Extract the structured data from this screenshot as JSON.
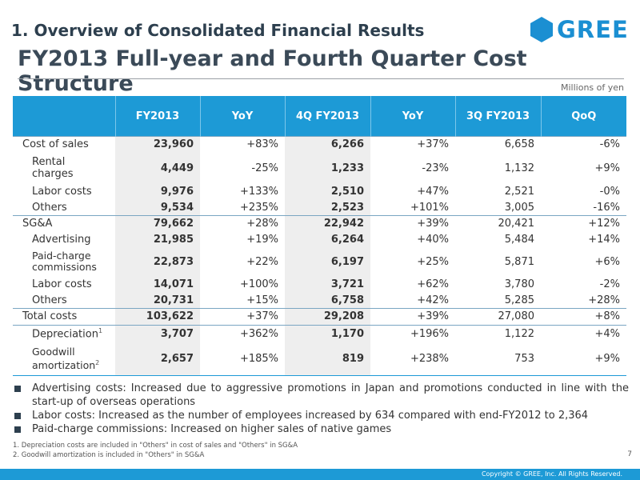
{
  "header": {
    "section_title": "1. Overview of Consolidated Financial Results",
    "logo_text": "GREE",
    "main_title": "FY2013 Full-year and Fourth Quarter Cost Structure",
    "unit": "Millions of yen"
  },
  "table": {
    "columns": [
      "FY2013",
      "YoY",
      "4Q FY2013",
      "YoY",
      "3Q FY2013",
      "QoQ"
    ],
    "rows": [
      {
        "label": "Cost of sales",
        "sup": "",
        "values": [
          "23,960",
          "+83%",
          "6,266",
          "+37%",
          "6,658",
          "-6%"
        ]
      },
      {
        "label": "Rental charges",
        "sup": "",
        "values": [
          "4,449",
          "-25%",
          "1,233",
          "-23%",
          "1,132",
          "+9%"
        ]
      },
      {
        "label": "Labor costs",
        "sup": "",
        "values": [
          "9,976",
          "+133%",
          "2,510",
          "+47%",
          "2,521",
          "-0%"
        ]
      },
      {
        "label": "Others",
        "sup": "",
        "values": [
          "9,534",
          "+235%",
          "2,523",
          "+101%",
          "3,005",
          "-16%"
        ]
      },
      {
        "label": "SG&A",
        "sup": "",
        "values": [
          "79,662",
          "+28%",
          "22,942",
          "+39%",
          "20,421",
          "+12%"
        ]
      },
      {
        "label": "Advertising",
        "sup": "",
        "values": [
          "21,985",
          "+19%",
          "6,264",
          "+40%",
          "5,484",
          "+14%"
        ]
      },
      {
        "label": "Paid-charge commissions",
        "sup": "",
        "values": [
          "22,873",
          "+22%",
          "6,197",
          "+25%",
          "5,871",
          "+6%"
        ]
      },
      {
        "label": "Labor costs",
        "sup": "",
        "values": [
          "14,071",
          "+100%",
          "3,721",
          "+62%",
          "3,780",
          "-2%"
        ]
      },
      {
        "label": "Others",
        "sup": "",
        "values": [
          "20,731",
          "+15%",
          "6,758",
          "+42%",
          "5,285",
          "+28%"
        ]
      },
      {
        "label": "Total costs",
        "sup": "",
        "values": [
          "103,622",
          "+37%",
          "29,208",
          "+39%",
          "27,080",
          "+8%"
        ]
      },
      {
        "label": "Depreciation",
        "sup": "1",
        "values": [
          "3,707",
          "+362%",
          "1,170",
          "+196%",
          "1,122",
          "+4%"
        ]
      },
      {
        "label": "Goodwill amortization",
        "sup": "2",
        "values": [
          "2,657",
          "+185%",
          "819",
          "+238%",
          "753",
          "+9%"
        ]
      }
    ]
  },
  "bullets": [
    "Advertising costs: Increased due to aggressive promotions in Japan and promotions conducted in line with the start-up of overseas operations",
    "Labor costs: Increased as the number of employees increased by 634 compared with end-FY2012 to 2,364",
    "Paid-charge commissions: Increased on higher sales of native games"
  ],
  "footnotes": [
    "1. Depreciation costs are included in \"Others\" in cost of sales and \"Others\" in SG&A",
    "2. Goodwill amortization is included in \"Others\" in SG&A"
  ],
  "page_number": "7",
  "copyright": "Copyright © GREE, Inc. All Rights Reserved."
}
